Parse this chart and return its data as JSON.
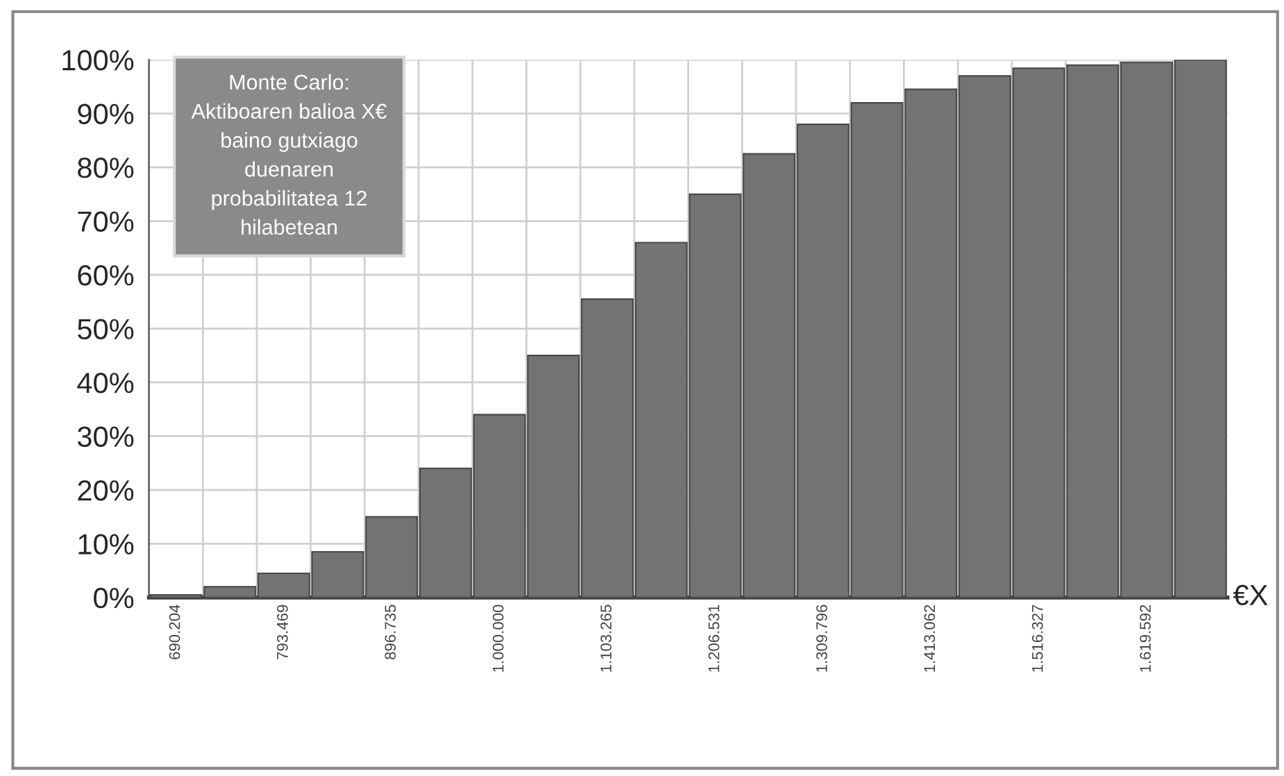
{
  "chart_data": {
    "type": "bar",
    "categories": [
      "690.204",
      null,
      "793.469",
      null,
      "896.735",
      null,
      "1.000.000",
      null,
      "1.103.265",
      null,
      "1.206.531",
      null,
      "1.309.796",
      null,
      "1.413.062",
      null,
      "1.516.327",
      null,
      "1.619.592",
      null
    ],
    "values": [
      0.5,
      2,
      4.5,
      8.5,
      15,
      24,
      34,
      45,
      55.5,
      66,
      75,
      82.5,
      88,
      92,
      94.5,
      97,
      98.4,
      99,
      99.5,
      100
    ],
    "color": "#737373",
    "xlabel": "€X",
    "ylim": [
      0,
      100
    ],
    "yticks": [
      {
        "value": 0,
        "label": "0%"
      },
      {
        "value": 10,
        "label": "10%"
      },
      {
        "value": 20,
        "label": "20%"
      },
      {
        "value": 30,
        "label": "30%"
      },
      {
        "value": 40,
        "label": "40%"
      },
      {
        "value": 50,
        "label": "50%"
      },
      {
        "value": 60,
        "label": "60%"
      },
      {
        "value": 70,
        "label": "70%"
      },
      {
        "value": 80,
        "label": "80%"
      },
      {
        "value": 90,
        "label": "90%"
      },
      {
        "value": 100,
        "label": "100%"
      }
    ],
    "grid": true,
    "annotations": [
      "Monte Carlo:\nAktiboaren balioa X€\nbaino gutxiago\nduenaren\nprobabilitatea 12\nhilabetean"
    ]
  }
}
